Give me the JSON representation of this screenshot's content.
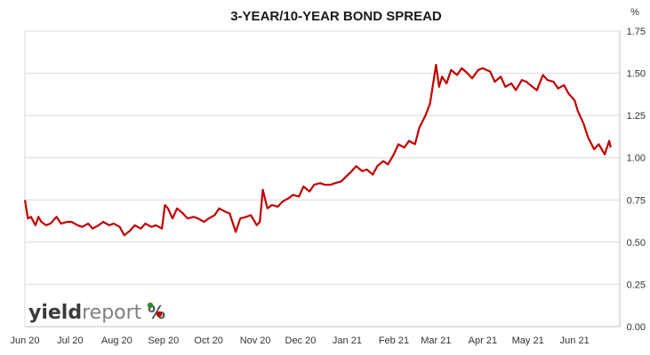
{
  "chart_data": {
    "type": "line",
    "title": "3-YEAR/10-YEAR BOND SPREAD",
    "y_unit": "%",
    "ylim": [
      0,
      1.75
    ],
    "y_ticks": [
      "0.00",
      "0.25",
      "0.50",
      "0.75",
      "1.00",
      "1.25",
      "1.50",
      "1.75"
    ],
    "x_tick_labels": [
      "Jun 20",
      "Jul 20",
      "Aug 20",
      "Sep 20",
      "Oct 20",
      "Nov 20",
      "Dec 20",
      "Jan 21",
      "Feb 21",
      "Mar 21",
      "Apr 21",
      "May 21",
      "Jun 21"
    ],
    "grid": "horizontal",
    "colors": {
      "line": "#c00000",
      "grid": "#d9d9d9"
    },
    "series": [
      {
        "x": [
          "2020-06-01",
          "2020-06-03",
          "2020-06-05",
          "2020-06-08",
          "2020-06-10",
          "2020-06-12",
          "2020-06-15",
          "2020-06-18",
          "2020-06-22",
          "2020-06-25",
          "2020-06-29",
          "2020-07-02",
          "2020-07-06",
          "2020-07-09",
          "2020-07-13",
          "2020-07-16",
          "2020-07-20",
          "2020-07-23",
          "2020-07-27",
          "2020-07-30",
          "2020-08-03",
          "2020-08-06",
          "2020-08-10",
          "2020-08-13",
          "2020-08-17",
          "2020-08-20",
          "2020-08-24",
          "2020-08-27",
          "2020-08-31",
          "2020-09-02",
          "2020-09-04",
          "2020-09-07",
          "2020-09-10",
          "2020-09-14",
          "2020-09-17",
          "2020-09-21",
          "2020-09-24",
          "2020-09-28",
          "2020-10-01",
          "2020-10-05",
          "2020-10-08",
          "2020-10-12",
          "2020-10-15",
          "2020-10-19",
          "2020-10-22",
          "2020-10-26",
          "2020-10-29",
          "2020-11-02",
          "2020-11-04",
          "2020-11-06",
          "2020-11-09",
          "2020-11-12",
          "2020-11-16",
          "2020-11-19",
          "2020-11-23",
          "2020-11-26",
          "2020-11-30",
          "2020-12-03",
          "2020-12-07",
          "2020-12-10",
          "2020-12-14",
          "2020-12-17",
          "2020-12-21",
          "2020-12-24",
          "2020-12-28",
          "2021-01-04",
          "2021-01-07",
          "2021-01-11",
          "2021-01-14",
          "2021-01-18",
          "2021-01-21",
          "2021-01-25",
          "2021-01-28",
          "2021-02-01",
          "2021-02-04",
          "2021-02-08",
          "2021-02-11",
          "2021-02-15",
          "2021-02-18",
          "2021-02-22",
          "2021-02-25",
          "2021-03-01",
          "2021-03-03",
          "2021-03-05",
          "2021-03-08",
          "2021-03-11",
          "2021-03-15",
          "2021-03-18",
          "2021-03-22",
          "2021-03-25",
          "2021-03-29",
          "2021-04-01",
          "2021-04-06",
          "2021-04-09",
          "2021-04-13",
          "2021-04-16",
          "2021-04-20",
          "2021-04-23",
          "2021-04-27",
          "2021-04-30",
          "2021-05-04",
          "2021-05-07",
          "2021-05-11",
          "2021-05-14",
          "2021-05-18",
          "2021-05-21",
          "2021-05-25",
          "2021-05-28",
          "2021-06-01",
          "2021-06-03",
          "2021-06-07",
          "2021-06-10",
          "2021-06-14",
          "2021-06-17",
          "2021-06-21",
          "2021-06-24",
          "2021-06-25"
        ],
        "y": [
          0.75,
          0.64,
          0.65,
          0.6,
          0.65,
          0.62,
          0.6,
          0.61,
          0.65,
          0.61,
          0.62,
          0.62,
          0.6,
          0.59,
          0.61,
          0.58,
          0.6,
          0.62,
          0.6,
          0.61,
          0.59,
          0.54,
          0.57,
          0.6,
          0.58,
          0.61,
          0.59,
          0.6,
          0.58,
          0.72,
          0.7,
          0.64,
          0.7,
          0.67,
          0.64,
          0.65,
          0.64,
          0.62,
          0.64,
          0.66,
          0.7,
          0.68,
          0.67,
          0.56,
          0.64,
          0.65,
          0.66,
          0.6,
          0.62,
          0.81,
          0.7,
          0.72,
          0.71,
          0.74,
          0.76,
          0.78,
          0.77,
          0.83,
          0.8,
          0.84,
          0.85,
          0.84,
          0.84,
          0.85,
          0.86,
          0.92,
          0.95,
          0.92,
          0.93,
          0.9,
          0.95,
          0.98,
          0.96,
          1.02,
          1.08,
          1.06,
          1.1,
          1.08,
          1.18,
          1.25,
          1.32,
          1.55,
          1.42,
          1.48,
          1.44,
          1.52,
          1.49,
          1.53,
          1.5,
          1.47,
          1.52,
          1.53,
          1.51,
          1.45,
          1.48,
          1.42,
          1.44,
          1.4,
          1.46,
          1.45,
          1.42,
          1.4,
          1.49,
          1.46,
          1.45,
          1.41,
          1.43,
          1.38,
          1.34,
          1.28,
          1.2,
          1.12,
          1.05,
          1.08,
          1.02,
          1.1,
          1.06
        ]
      }
    ]
  },
  "logo": {
    "text_a": "yield",
    "text_b": "report",
    "symbol": "%"
  }
}
